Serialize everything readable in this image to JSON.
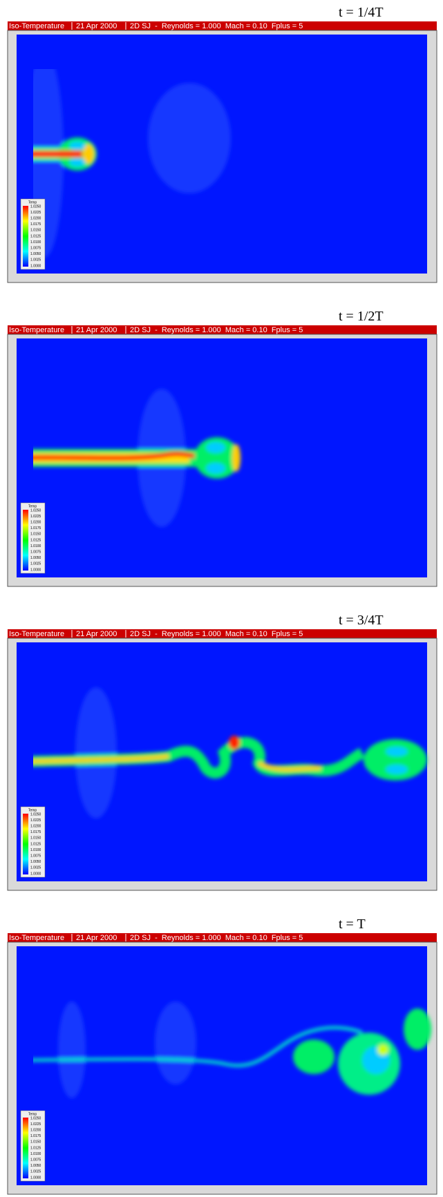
{
  "panels": [
    {
      "caption": "t = 1/4T"
    },
    {
      "caption": "t = 1/2T"
    },
    {
      "caption": "t = 3/4T"
    },
    {
      "caption": "t = T"
    }
  ],
  "header": {
    "quantity": "Iso-Temperature",
    "date": "21 Apr 2000",
    "case": "2D SJ  -  Reynolds = 1.000  Mach = 0.10  Fplus = 5"
  },
  "legend": {
    "title": "Temp",
    "labels": [
      "1.0250",
      "1.0225",
      "1.0200",
      "1.0175",
      "1.0150",
      "1.0125",
      "1.0100",
      "1.0075",
      "1.0050",
      "1.0025",
      "1.0000"
    ]
  }
}
